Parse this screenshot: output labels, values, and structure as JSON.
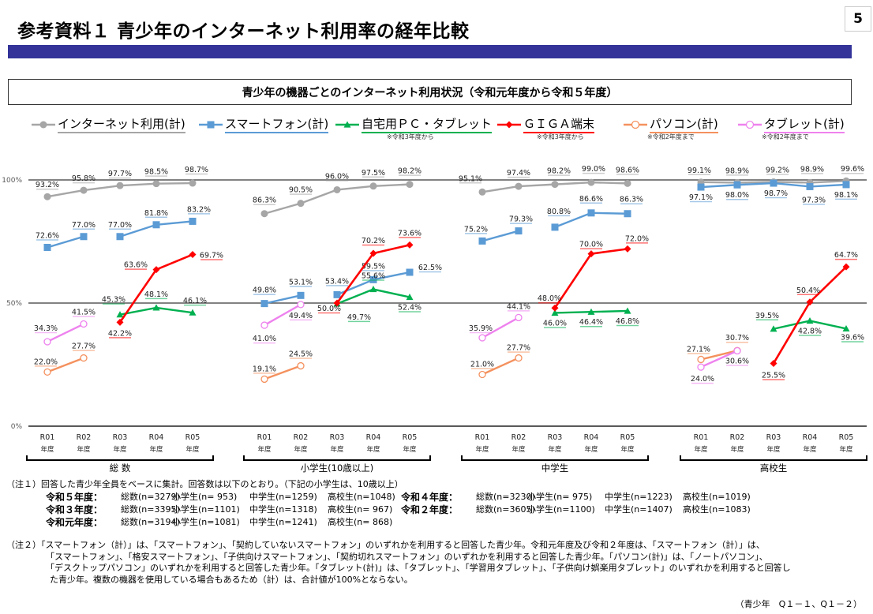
{
  "page": {
    "title": "参考資料１ 青少年のインターネット利用率の経年比較",
    "page_number": "5"
  },
  "chart_box_title": "青少年の機器ごとのインターネット利用状況（令和元年度から令和５年度）",
  "legend": [
    {
      "label": "インターネット利用(計)",
      "color": "#a6a6a6",
      "marker": "circle",
      "note": ""
    },
    {
      "label": "スマートフォン(計)",
      "color": "#5b9bd5",
      "marker": "square",
      "note": ""
    },
    {
      "label": "自宅用ＰＣ・タブレット",
      "color": "#00b050",
      "marker": "triangle",
      "note": "※令和3年度から"
    },
    {
      "label": "ＧＩＧＡ端末",
      "color": "#ff0000",
      "marker": "diamond",
      "note": "※令和3年度から"
    },
    {
      "label": "パソコン(計)",
      "color": "#f4915e",
      "marker": "open-circle",
      "note": "※令和2年度まで"
    },
    {
      "label": "タブレット(計)",
      "color": "#ee82ee",
      "marker": "open-circle",
      "note": "※令和2年度まで"
    }
  ],
  "chart_data": {
    "type": "line",
    "title": "青少年の機器ごとのインターネット利用状況（令和元年度から令和５年度）",
    "ylim": [
      0,
      100
    ],
    "y_ticks": [
      "0%",
      "50%",
      "100%"
    ],
    "grid": "horizontal lines at 0%, 50%, 100%",
    "legend_position": "top",
    "categories": [
      "R01",
      "R02",
      "R03",
      "R04",
      "R05"
    ],
    "category_sublabel": "年度",
    "groups": [
      {
        "name": "総 数",
        "series": [
          {
            "name": "インターネット利用(計)",
            "values": [
              93.2,
              95.8,
              97.7,
              98.5,
              98.7
            ]
          },
          {
            "name": "スマートフォン(計)",
            "values": [
              72.6,
              77.0,
              null,
              null,
              null
            ],
            "values_b": [
              null,
              null,
              77.0,
              81.8,
              83.2
            ]
          },
          {
            "name": "自宅用ＰＣ・タブレット",
            "values": [
              null,
              null,
              45.3,
              48.1,
              46.1
            ]
          },
          {
            "name": "ＧＩＧＡ端末",
            "values": [
              null,
              null,
              42.2,
              63.6,
              69.7
            ]
          },
          {
            "name": "パソコン(計)",
            "values": [
              22.0,
              27.7,
              null,
              null,
              null
            ]
          },
          {
            "name": "タブレット(計)",
            "values": [
              34.3,
              41.5,
              null,
              null,
              null
            ]
          }
        ]
      },
      {
        "name": "小学生(10歳以上)",
        "series": [
          {
            "name": "インターネット利用(計)",
            "values": [
              86.3,
              90.5,
              96.0,
              97.5,
              98.2
            ]
          },
          {
            "name": "スマートフォン(計)",
            "values": [
              49.8,
              53.1,
              null,
              null,
              null
            ],
            "values_b": [
              null,
              null,
              53.4,
              59.5,
              62.5
            ]
          },
          {
            "name": "自宅用ＰＣ・タブレット",
            "values": [
              null,
              null,
              49.7,
              55.6,
              52.4
            ]
          },
          {
            "name": "ＧＩＧＡ端末",
            "values": [
              null,
              null,
              50.0,
              70.2,
              73.6
            ]
          },
          {
            "name": "パソコン(計)",
            "values": [
              19.1,
              24.5,
              null,
              null,
              null
            ]
          },
          {
            "name": "タブレット(計)",
            "values": [
              41.0,
              49.4,
              null,
              null,
              null
            ]
          }
        ]
      },
      {
        "name": "中学生",
        "series": [
          {
            "name": "インターネット利用(計)",
            "values": [
              95.1,
              97.4,
              98.2,
              99.0,
              98.6
            ]
          },
          {
            "name": "スマートフォン(計)",
            "values": [
              75.2,
              79.3,
              null,
              null,
              null
            ],
            "values_b": [
              null,
              null,
              80.8,
              86.6,
              86.3
            ]
          },
          {
            "name": "自宅用ＰＣ・タブレット",
            "values": [
              null,
              null,
              46.0,
              46.4,
              46.8
            ]
          },
          {
            "name": "ＧＩＧＡ端末",
            "values": [
              null,
              null,
              48.0,
              70.0,
              72.0
            ]
          },
          {
            "name": "パソコン(計)",
            "values": [
              21.0,
              27.7,
              null,
              null,
              null
            ]
          },
          {
            "name": "タブレット(計)",
            "values": [
              35.9,
              44.1,
              null,
              null,
              null
            ]
          }
        ]
      },
      {
        "name": "高校生",
        "series": [
          {
            "name": "インターネット利用(計)",
            "values": [
              99.1,
              98.9,
              99.2,
              98.9,
              99.6
            ]
          },
          {
            "name": "スマートフォン(計)",
            "values": [
              97.1,
              98.0,
              98.7,
              97.3,
              98.1
            ]
          },
          {
            "name": "自宅用ＰＣ・タブレット",
            "values": [
              null,
              null,
              39.5,
              42.8,
              39.6
            ]
          },
          {
            "name": "ＧＩＧＡ端末",
            "values": [
              null,
              null,
              25.5,
              50.4,
              64.7
            ]
          },
          {
            "name": "パソコン(計)",
            "values": [
              27.1,
              30.7,
              null,
              null,
              null
            ]
          },
          {
            "name": "タブレット(計)",
            "values": [
              24.0,
              30.6,
              null,
              null,
              null
            ]
          }
        ]
      }
    ]
  },
  "notes": {
    "note1_intro": "（注１）回答した青少年全員をベースに集計。回答数は以下のとおり。（下記の小学生は、10歳以上）",
    "sample_sizes": [
      {
        "year": "令和５年度：",
        "total": "総数(n=3279)",
        "elem": "小学生(n=  953)",
        "middle": "中学生(n=1259)",
        "high": "高校生(n=1048)"
      },
      {
        "year": "令和４年度：",
        "total": "総数(n=3230)",
        "elem": "小学生(n=  975)",
        "middle": "中学生(n=1223)",
        "high": "高校生(n=1019)"
      },
      {
        "year": "令和３年度：",
        "total": "総数(n=3395)",
        "elem": "小学生(n=1101)",
        "middle": "中学生(n=1318)",
        "high": "高校生(n=  967)"
      },
      {
        "year": "令和２年度：",
        "total": "総数(n=3605)",
        "elem": "小学生(n=1100)",
        "middle": "中学生(n=1407)",
        "high": "高校生(n=1083)"
      },
      {
        "year": "令和元年度：",
        "total": "総数(n=3194)",
        "elem": "小学生(n=1081)",
        "middle": "中学生(n=1241)",
        "high": "高校生(n=  868)"
      }
    ],
    "note2_lines": [
      "（注２）「スマートフォン（計）」は、「スマートフォン」、「契約していないスマートフォン」のいずれかを利用すると回答した青少年。令和元年度及び令和２年度は、「スマートフォン（計）」は、",
      "「スマートフォン」、「格安スマートフォン」、「子供向けスマートフォン」、「契約切れスマートフォン」のいずれかを利用すると回答した青少年。「パソコン(計)」は、「ノートパソコン」、",
      "「デスクトップパソコン」のいずれかを利用すると回答した青少年。「タブレット(計)」は、「タブレット」、「学習用タブレット」、「子供向け娯楽用タブレット」のいずれかを利用すると回答し",
      "た青少年。複数の機器を使用している場合もあるため（計）は、合計値が100%とならない。"
    ],
    "source": "（青少年　Q１－１、Q１－２）"
  }
}
